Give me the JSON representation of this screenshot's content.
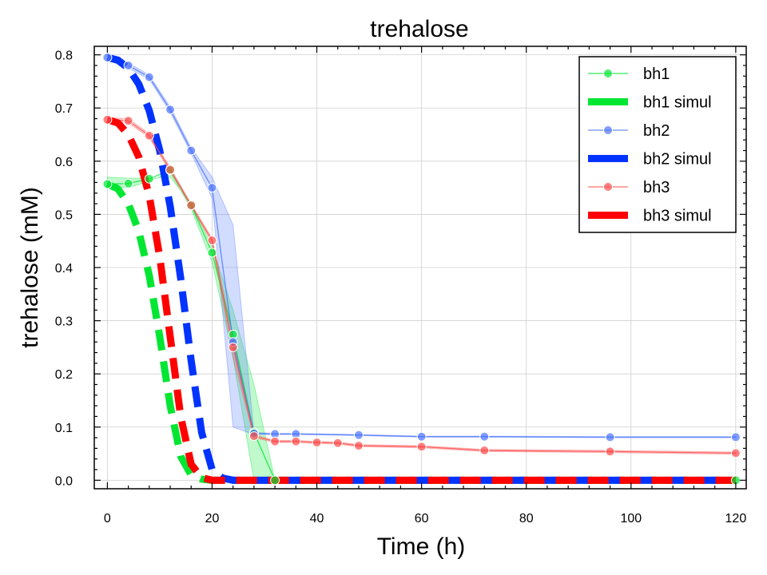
{
  "chart_data": {
    "type": "line",
    "title": "trehalose",
    "xlabel": "Time (h)",
    "ylabel": "trehalose (mM)",
    "xlim": [
      -2.5,
      122
    ],
    "ylim": [
      -0.016,
      0.816
    ],
    "xticks": [
      0,
      20,
      40,
      60,
      80,
      100,
      120
    ],
    "yticks": [
      0.0,
      0.1,
      0.2,
      0.3,
      0.4,
      0.5,
      0.6,
      0.7,
      0.8
    ],
    "xtick_labels": [
      "0",
      "20",
      "40",
      "60",
      "80",
      "100",
      "120"
    ],
    "ytick_labels": [
      "0.0",
      "0.1",
      "0.2",
      "0.3",
      "0.4",
      "0.5",
      "0.6",
      "0.7",
      "0.8"
    ],
    "grid": true,
    "legend_position": "top-right",
    "series": [
      {
        "name": "bh1",
        "kind": "measured",
        "color": "#00e632",
        "x": [
          0,
          4,
          8,
          12,
          16,
          20,
          24,
          28,
          32,
          120
        ],
        "y": [
          0.557,
          0.558,
          0.567,
          0.583,
          0.517,
          0.428,
          0.274,
          0.09,
          0.0,
          0.0
        ],
        "band_upper": [
          0.57,
          0.568,
          0.568,
          0.57,
          0.52,
          0.44,
          0.32,
          0.18,
          0.0,
          0.0
        ],
        "band_lower": [
          0.55,
          0.55,
          0.562,
          0.58,
          0.51,
          0.41,
          0.23,
          0.0,
          0.0,
          0.0
        ]
      },
      {
        "name": "bh1 simul",
        "kind": "simulated",
        "color": "#00e632",
        "x": [
          0,
          2,
          4,
          6,
          8,
          10,
          12,
          14,
          16,
          18,
          20,
          22,
          24,
          120
        ],
        "y": [
          0.557,
          0.548,
          0.52,
          0.468,
          0.385,
          0.27,
          0.14,
          0.045,
          0.01,
          0.002,
          0.0,
          0.0,
          0.0,
          0.0
        ]
      },
      {
        "name": "bh2",
        "kind": "measured",
        "color": "#4b73ff",
        "x": [
          0,
          4,
          8,
          12,
          16,
          20,
          24,
          28,
          32,
          36,
          48,
          60,
          72,
          96,
          120
        ],
        "y": [
          0.795,
          0.78,
          0.758,
          0.697,
          0.62,
          0.55,
          0.26,
          0.088,
          0.087,
          0.087,
          0.085,
          0.082,
          0.082,
          0.081,
          0.081
        ],
        "band_upper": [
          0.8,
          0.785,
          0.762,
          0.702,
          0.625,
          0.57,
          0.48,
          0.09,
          0.088,
          0.088,
          0.086,
          0.083,
          0.083,
          0.082,
          0.082
        ],
        "band_lower": [
          0.79,
          0.775,
          0.754,
          0.692,
          0.615,
          0.53,
          0.1,
          0.086,
          0.086,
          0.086,
          0.084,
          0.081,
          0.081,
          0.08,
          0.08
        ]
      },
      {
        "name": "bh2 simul",
        "kind": "simulated",
        "color": "#0033ff",
        "x": [
          0,
          2,
          4,
          6,
          8,
          10,
          12,
          14,
          16,
          18,
          20,
          22,
          24,
          26,
          120
        ],
        "y": [
          0.795,
          0.79,
          0.775,
          0.745,
          0.695,
          0.62,
          0.515,
          0.38,
          0.225,
          0.09,
          0.02,
          0.004,
          0.0,
          0.0,
          0.0
        ]
      },
      {
        "name": "bh3",
        "kind": "measured",
        "color": "#ff4b4b",
        "x": [
          0,
          4,
          8,
          12,
          16,
          20,
          24,
          28,
          32,
          36,
          40,
          44,
          48,
          60,
          72,
          96,
          120
        ],
        "y": [
          0.678,
          0.676,
          0.648,
          0.584,
          0.517,
          0.451,
          0.25,
          0.083,
          0.073,
          0.073,
          0.071,
          0.07,
          0.065,
          0.063,
          0.056,
          0.054,
          0.051
        ],
        "band_upper": [
          0.682,
          0.68,
          0.652,
          0.588,
          0.52,
          0.455,
          0.27,
          0.086,
          0.075,
          0.075,
          0.073,
          0.072,
          0.067,
          0.065,
          0.058,
          0.056,
          0.053
        ],
        "band_lower": [
          0.674,
          0.672,
          0.644,
          0.58,
          0.514,
          0.447,
          0.23,
          0.08,
          0.071,
          0.071,
          0.069,
          0.068,
          0.063,
          0.061,
          0.054,
          0.052,
          0.049
        ]
      },
      {
        "name": "bh3 simul",
        "kind": "simulated",
        "color": "#ff0000",
        "x": [
          0,
          2,
          4,
          6,
          8,
          10,
          12,
          14,
          16,
          18,
          20,
          22,
          24,
          120
        ],
        "y": [
          0.678,
          0.672,
          0.65,
          0.608,
          0.535,
          0.42,
          0.27,
          0.12,
          0.03,
          0.005,
          0.0,
          0.0,
          0.0,
          0.0
        ]
      }
    ]
  }
}
